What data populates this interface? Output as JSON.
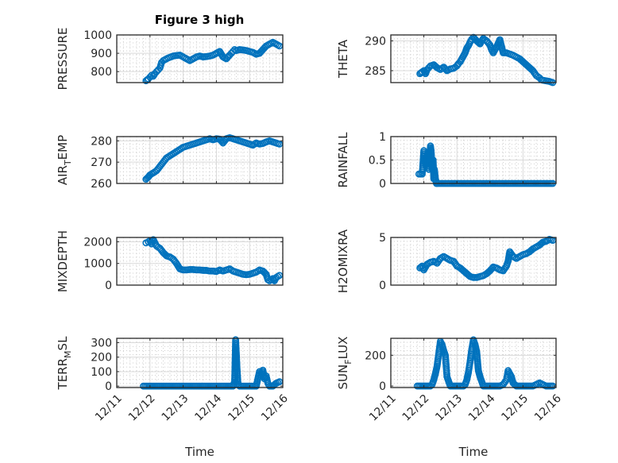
{
  "figure": {
    "title": "Figure 3 high",
    "marker_color": "#0072BD",
    "axis_color": "#262626",
    "grid_color": "#d9d9d9"
  },
  "chart_data": [
    {
      "type": "scatter",
      "id": "pressure",
      "ylabel": "PRESSURE",
      "ylabel_sub": null,
      "title": "Figure 3 high",
      "xlabel": "",
      "xlim": [
        0,
        5
      ],
      "xticks": [
        0,
        1,
        2,
        3,
        4,
        5
      ],
      "xticklabels": [],
      "ylim": [
        740,
        1000
      ],
      "yticks": [
        800,
        900,
        1000
      ],
      "yticklabels": [
        "800",
        "900",
        "1000"
      ],
      "x": [
        0.88,
        0.95,
        1.0,
        1.05,
        1.1,
        1.15,
        1.2,
        1.25,
        1.3,
        1.35,
        1.4,
        1.45,
        1.5,
        1.55,
        1.6,
        1.7,
        1.8,
        1.9,
        2.0,
        2.1,
        2.2,
        2.3,
        2.4,
        2.5,
        2.6,
        2.7,
        2.8,
        2.9,
        3.0,
        3.1,
        3.2,
        3.3,
        3.4,
        3.45,
        3.5,
        3.55,
        3.6,
        3.7,
        3.8,
        3.9,
        4.0,
        4.1,
        4.2,
        4.3,
        4.4,
        4.5,
        4.6,
        4.7,
        4.75,
        4.8,
        4.85,
        4.9
      ],
      "y": [
        750,
        760,
        770,
        780,
        775,
        790,
        800,
        810,
        820,
        850,
        860,
        865,
        870,
        875,
        878,
        885,
        888,
        890,
        880,
        870,
        860,
        870,
        880,
        885,
        880,
        882,
        885,
        890,
        900,
        910,
        880,
        870,
        890,
        900,
        910,
        920,
        915,
        920,
        918,
        915,
        910,
        905,
        895,
        900,
        920,
        940,
        950,
        960,
        955,
        950,
        945,
        940
      ]
    },
    {
      "type": "scatter",
      "id": "theta",
      "ylabel": "THETA",
      "xlim": [
        0,
        5
      ],
      "xticks": [
        0,
        1,
        2,
        3,
        4,
        5
      ],
      "xticklabels": [],
      "ylim": [
        283,
        291
      ],
      "yticks": [
        285,
        290
      ],
      "yticklabels": [
        "285",
        "290"
      ],
      "x": [
        0.88,
        0.95,
        1.0,
        1.05,
        1.1,
        1.15,
        1.2,
        1.3,
        1.4,
        1.5,
        1.6,
        1.7,
        1.8,
        1.9,
        2.0,
        2.05,
        2.1,
        2.15,
        2.2,
        2.25,
        2.3,
        2.35,
        2.4,
        2.45,
        2.5,
        2.6,
        2.7,
        2.75,
        2.8,
        2.9,
        3.0,
        3.05,
        3.1,
        3.2,
        3.3,
        3.4,
        3.5,
        3.6,
        3.7,
        3.8,
        3.9,
        4.0,
        4.1,
        4.2,
        4.3,
        4.4,
        4.5,
        4.55,
        4.6,
        4.7,
        4.8,
        4.85,
        4.9
      ],
      "y": [
        284.5,
        284.8,
        285.0,
        284.5,
        285.2,
        285.5,
        285.8,
        286.0,
        285.5,
        285.2,
        285.6,
        285.0,
        285.3,
        285.4,
        285.8,
        286.2,
        286.5,
        287.0,
        287.5,
        288.0,
        288.8,
        289.2,
        289.8,
        290.3,
        290.6,
        290.0,
        289.5,
        290.0,
        290.4,
        290.0,
        289.3,
        288.5,
        288.0,
        289.0,
        290.2,
        288.0,
        288.0,
        287.8,
        287.6,
        287.3,
        287.0,
        286.5,
        286.0,
        285.5,
        285.0,
        284.2,
        283.8,
        283.5,
        283.4,
        283.3,
        283.2,
        283.1,
        283.0
      ]
    },
    {
      "type": "scatter",
      "id": "air_temp",
      "ylabel": "AIR",
      "ylabel_sub": "T",
      "ylabel_rest": "EMP",
      "xlim": [
        0,
        5
      ],
      "xticks": [
        0,
        1,
        2,
        3,
        4,
        5
      ],
      "xticklabels": [],
      "ylim": [
        260,
        282
      ],
      "yticks": [
        260,
        270,
        280
      ],
      "yticklabels": [
        "260",
        "270",
        "280"
      ],
      "x": [
        0.88,
        0.95,
        1.0,
        1.1,
        1.2,
        1.3,
        1.4,
        1.5,
        1.6,
        1.7,
        1.8,
        1.9,
        2.0,
        2.1,
        2.2,
        2.3,
        2.4,
        2.5,
        2.6,
        2.7,
        2.8,
        2.9,
        3.0,
        3.1,
        3.2,
        3.3,
        3.4,
        3.5,
        3.6,
        3.7,
        3.8,
        3.9,
        4.0,
        4.1,
        4.2,
        4.3,
        4.4,
        4.5,
        4.6,
        4.7,
        4.8,
        4.9
      ],
      "y": [
        262,
        263,
        264,
        265,
        266,
        268,
        270,
        272,
        273,
        274,
        275,
        276,
        277,
        277.5,
        278,
        278.5,
        279,
        279.5,
        280,
        280.5,
        281,
        280.5,
        281,
        280.8,
        279,
        281,
        281.5,
        281,
        280.5,
        280,
        279.5,
        279,
        278.5,
        278,
        279,
        278.5,
        278.8,
        279.5,
        280,
        279.5,
        279,
        278.5
      ]
    },
    {
      "type": "scatter",
      "id": "rainfall",
      "ylabel": "RAINFALL",
      "xlim": [
        0,
        5
      ],
      "xticks": [
        0,
        1,
        2,
        3,
        4,
        5
      ],
      "xticklabels": [],
      "ylim": [
        0,
        1
      ],
      "yticks": [
        0,
        0.5,
        1
      ],
      "yticklabels": [
        "0",
        "0.5",
        "1"
      ],
      "x": [
        0.85,
        0.9,
        0.95,
        1.0,
        1.05,
        1.1,
        1.12,
        1.15,
        1.18,
        1.2,
        1.22,
        1.25,
        1.28,
        1.3,
        1.32,
        1.35,
        1.38,
        1.4,
        1.45,
        1.5,
        1.55,
        1.6,
        1.7,
        1.8,
        1.9,
        2.0,
        2.1,
        2.2,
        2.3,
        2.4,
        2.5,
        2.6,
        2.7,
        2.8,
        2.9,
        3.0,
        3.1,
        3.2,
        3.3,
        3.4,
        3.5,
        3.6,
        3.7,
        3.8,
        3.9,
        4.0,
        4.1,
        4.2,
        4.3,
        4.4,
        4.5,
        4.6,
        4.7,
        4.8,
        4.9
      ],
      "y": [
        0.2,
        0.2,
        0.2,
        0.7,
        0.4,
        0.6,
        0.5,
        0.3,
        0.6,
        0.8,
        0.7,
        0.3,
        0.5,
        0.1,
        0.3,
        0.1,
        0.0,
        0.0,
        0.0,
        0.0,
        0.0,
        0.0,
        0.0,
        0.0,
        0.0,
        0.0,
        0.0,
        0.0,
        0.0,
        0.0,
        0.0,
        0.0,
        0.0,
        0.0,
        0.0,
        0.0,
        0.0,
        0.0,
        0.0,
        0.0,
        0.0,
        0.0,
        0.0,
        0.0,
        0.0,
        0.0,
        0.0,
        0.0,
        0.0,
        0.0,
        0.0,
        0.0,
        0.0,
        0.0,
        0.0
      ]
    },
    {
      "type": "scatter",
      "id": "mixdepth",
      "ylabel": "MIXDEPTH",
      "xlim": [
        0,
        5
      ],
      "xticks": [
        0,
        1,
        2,
        3,
        4,
        5
      ],
      "xticklabels": [],
      "ylim": [
        0,
        2200
      ],
      "yticks": [
        0,
        1000,
        2000
      ],
      "yticklabels": [
        "0",
        "1000",
        "2000"
      ],
      "x": [
        0.88,
        0.95,
        1.0,
        1.05,
        1.1,
        1.2,
        1.3,
        1.4,
        1.5,
        1.6,
        1.7,
        1.8,
        1.9,
        2.0,
        2.1,
        2.2,
        2.3,
        2.4,
        2.5,
        2.6,
        2.7,
        2.8,
        2.9,
        3.0,
        3.1,
        3.2,
        3.3,
        3.4,
        3.5,
        3.6,
        3.7,
        3.8,
        3.9,
        4.0,
        4.1,
        4.2,
        4.3,
        4.4,
        4.5,
        4.55,
        4.6,
        4.65,
        4.7,
        4.75,
        4.8,
        4.85,
        4.9
      ],
      "y": [
        1950,
        2000,
        2050,
        1900,
        2100,
        1800,
        1700,
        1500,
        1350,
        1300,
        1200,
        1000,
        750,
        700,
        700,
        720,
        720,
        700,
        700,
        680,
        680,
        650,
        650,
        630,
        700,
        650,
        700,
        750,
        650,
        600,
        550,
        500,
        480,
        500,
        550,
        600,
        700,
        650,
        500,
        250,
        200,
        250,
        300,
        200,
        350,
        400,
        450
      ]
    },
    {
      "type": "scatter",
      "id": "h2omixra",
      "ylabel": "H2OMIXRA",
      "xlim": [
        0,
        5
      ],
      "xticks": [
        0,
        1,
        2,
        3,
        4,
        5
      ],
      "xticklabels": [],
      "ylim": [
        0,
        5
      ],
      "yticks": [
        0,
        5
      ],
      "yticklabels": [
        "0",
        "5"
      ],
      "x": [
        0.88,
        0.95,
        1.0,
        1.1,
        1.2,
        1.3,
        1.4,
        1.5,
        1.6,
        1.7,
        1.8,
        1.9,
        2.0,
        2.1,
        2.2,
        2.3,
        2.4,
        2.5,
        2.6,
        2.7,
        2.8,
        2.9,
        3.0,
        3.1,
        3.2,
        3.3,
        3.4,
        3.5,
        3.55,
        3.6,
        3.7,
        3.8,
        3.9,
        4.0,
        4.1,
        4.2,
        4.3,
        4.4,
        4.5,
        4.6,
        4.7,
        4.8,
        4.9
      ],
      "y": [
        1.8,
        2.0,
        1.6,
        2.2,
        2.4,
        2.5,
        2.3,
        2.8,
        3.0,
        2.8,
        2.6,
        2.5,
        2.0,
        1.8,
        1.5,
        1.2,
        0.9,
        0.8,
        0.8,
        0.9,
        1.0,
        1.2,
        1.5,
        1.9,
        1.8,
        1.6,
        1.5,
        2.0,
        2.5,
        3.5,
        3.0,
        2.8,
        3.0,
        3.2,
        3.3,
        3.5,
        3.8,
        4.0,
        4.2,
        4.5,
        4.6,
        4.8,
        4.7
      ]
    },
    {
      "type": "scatter",
      "id": "terr_msl",
      "ylabel": "TERR",
      "ylabel_sub": "M",
      "ylabel_rest": "SL",
      "xlim": [
        0,
        5
      ],
      "xticks": [
        0,
        1,
        2,
        3,
        4,
        5
      ],
      "xticklabels": [
        "12/11",
        "12/12",
        "12/13",
        "12/14",
        "12/15",
        "12/16"
      ],
      "xlabel": "Time",
      "ylim": [
        -10,
        330
      ],
      "yticks": [
        0,
        100,
        200,
        300
      ],
      "yticklabels": [
        "0",
        "100",
        "200",
        "300"
      ],
      "x": [
        0.8,
        0.9,
        1.0,
        1.1,
        1.2,
        1.3,
        1.4,
        1.5,
        1.6,
        1.7,
        1.8,
        1.9,
        2.0,
        2.1,
        2.2,
        2.3,
        2.4,
        2.5,
        2.6,
        2.7,
        2.8,
        2.9,
        3.0,
        3.1,
        3.2,
        3.3,
        3.4,
        3.5,
        3.55,
        3.58,
        3.6,
        3.62,
        3.65,
        3.7,
        3.8,
        3.9,
        4.0,
        4.1,
        4.2,
        4.3,
        4.35,
        4.4,
        4.45,
        4.5,
        4.55,
        4.6,
        4.7,
        4.8,
        4.9
      ],
      "y": [
        0,
        0,
        0,
        0,
        0,
        0,
        0,
        0,
        0,
        0,
        0,
        0,
        0,
        0,
        0,
        0,
        0,
        0,
        0,
        0,
        0,
        0,
        0,
        0,
        0,
        0,
        0,
        0,
        30,
        320,
        230,
        125,
        20,
        0,
        0,
        0,
        0,
        0,
        0,
        100,
        90,
        110,
        50,
        70,
        20,
        0,
        0,
        20,
        30
      ]
    },
    {
      "type": "scatter",
      "id": "sun_flux",
      "ylabel": "SUN",
      "ylabel_sub": "F",
      "ylabel_rest": "LUX",
      "xlim": [
        0,
        5
      ],
      "xticks": [
        0,
        1,
        2,
        3,
        4,
        5
      ],
      "xticklabels": [
        "12/11",
        "12/12",
        "12/13",
        "12/14",
        "12/15",
        "12/16"
      ],
      "xlabel": "Time",
      "ylim": [
        -10,
        310
      ],
      "yticks": [
        0,
        200
      ],
      "yticklabels": [
        "0",
        "200"
      ],
      "x": [
        0.8,
        0.9,
        1.0,
        1.1,
        1.2,
        1.25,
        1.3,
        1.35,
        1.4,
        1.45,
        1.5,
        1.55,
        1.6,
        1.65,
        1.7,
        1.8,
        1.9,
        2.0,
        2.1,
        2.2,
        2.25,
        2.3,
        2.35,
        2.4,
        2.45,
        2.5,
        2.55,
        2.6,
        2.65,
        2.7,
        2.8,
        2.9,
        3.0,
        3.1,
        3.2,
        3.3,
        3.4,
        3.5,
        3.55,
        3.6,
        3.65,
        3.7,
        3.8,
        3.9,
        4.0,
        4.1,
        4.2,
        4.3,
        4.4,
        4.5,
        4.6,
        4.7,
        4.8,
        4.9
      ],
      "y": [
        0,
        0,
        0,
        0,
        0,
        10,
        40,
        80,
        130,
        210,
        290,
        270,
        230,
        200,
        60,
        0,
        0,
        0,
        0,
        0,
        10,
        40,
        90,
        160,
        240,
        300,
        270,
        220,
        100,
        60,
        0,
        0,
        0,
        0,
        0,
        0,
        10,
        40,
        100,
        80,
        60,
        20,
        0,
        0,
        0,
        0,
        0,
        0,
        10,
        20,
        10,
        0,
        0,
        0
      ]
    }
  ]
}
